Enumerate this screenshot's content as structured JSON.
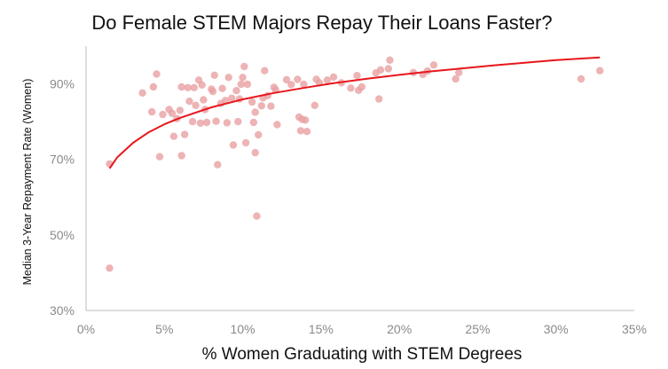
{
  "chart_data": {
    "type": "scatter",
    "title": "Do Female STEM Majors Repay Their Loans Faster?",
    "xlabel": "% Women Graduating with STEM Degrees",
    "ylabel": "Median 3-Year Repayment Rate (Women)",
    "xlim": [
      0,
      35
    ],
    "ylim": [
      30,
      100
    ],
    "x_ticks": [
      "0%",
      "5%",
      "10%",
      "15%",
      "20%",
      "25%",
      "30%",
      "35%"
    ],
    "x_tick_values": [
      0,
      5,
      10,
      15,
      20,
      25,
      30,
      35
    ],
    "y_ticks": [
      "30%",
      "50%",
      "70%",
      "90%"
    ],
    "y_tick_values": [
      30,
      50,
      70,
      90
    ],
    "grid": false,
    "point_color": "#e8a0a3",
    "trend_color": "#e8161c",
    "trend": {
      "type": "logarithmic",
      "x_range": [
        1.5,
        32.8
      ],
      "points": [
        [
          1.5,
          67.6
        ],
        [
          2.0,
          70.6
        ],
        [
          3.0,
          74.4
        ],
        [
          4.0,
          77.2
        ],
        [
          5.0,
          79.3
        ],
        [
          6.0,
          81.0
        ],
        [
          8.0,
          83.8
        ],
        [
          10.0,
          85.9
        ],
        [
          12.0,
          87.6
        ],
        [
          14.0,
          89.0
        ],
        [
          16.0,
          90.3
        ],
        [
          18.0,
          91.4
        ],
        [
          20.0,
          92.4
        ],
        [
          22.0,
          93.3
        ],
        [
          24.0,
          94.1
        ],
        [
          26.0,
          94.9
        ],
        [
          28.0,
          95.6
        ],
        [
          30.0,
          96.3
        ],
        [
          32.8,
          97.0
        ]
      ]
    },
    "points": [
      [
        1.5,
        68.8
      ],
      [
        1.5,
        41.2
      ],
      [
        3.6,
        87.6
      ],
      [
        4.2,
        82.6
      ],
      [
        4.3,
        89.2
      ],
      [
        4.5,
        92.6
      ],
      [
        4.7,
        70.7
      ],
      [
        4.9,
        81.9
      ],
      [
        5.3,
        83.2
      ],
      [
        5.5,
        82.2
      ],
      [
        5.6,
        76.1
      ],
      [
        5.8,
        80.8
      ],
      [
        6.0,
        83.0
      ],
      [
        6.1,
        89.2
      ],
      [
        6.1,
        71.0
      ],
      [
        6.3,
        76.6
      ],
      [
        6.5,
        89.0
      ],
      [
        6.6,
        85.4
      ],
      [
        6.8,
        80.0
      ],
      [
        6.9,
        89.0
      ],
      [
        7.0,
        84.3
      ],
      [
        7.2,
        91.0
      ],
      [
        7.3,
        79.6
      ],
      [
        7.4,
        89.7
      ],
      [
        7.5,
        85.8
      ],
      [
        7.6,
        83.2
      ],
      [
        7.7,
        79.8
      ],
      [
        8.0,
        88.6
      ],
      [
        8.1,
        88.0
      ],
      [
        8.2,
        92.3
      ],
      [
        8.3,
        80.1
      ],
      [
        8.4,
        68.6
      ],
      [
        8.6,
        84.8
      ],
      [
        8.7,
        88.8
      ],
      [
        8.9,
        85.6
      ],
      [
        9.0,
        79.7
      ],
      [
        9.1,
        91.7
      ],
      [
        9.3,
        86.2
      ],
      [
        9.4,
        73.8
      ],
      [
        9.6,
        88.2
      ],
      [
        9.7,
        80.0
      ],
      [
        9.8,
        86.0
      ],
      [
        9.9,
        89.9
      ],
      [
        10.0,
        91.7
      ],
      [
        10.1,
        94.6
      ],
      [
        10.2,
        74.4
      ],
      [
        10.3,
        89.9
      ],
      [
        10.6,
        85.2
      ],
      [
        10.7,
        79.8
      ],
      [
        10.8,
        82.5
      ],
      [
        10.8,
        71.8
      ],
      [
        10.9,
        55.0
      ],
      [
        11.0,
        76.5
      ],
      [
        11.2,
        84.2
      ],
      [
        11.3,
        86.3
      ],
      [
        11.4,
        93.5
      ],
      [
        11.6,
        86.9
      ],
      [
        11.8,
        84.1
      ],
      [
        12.0,
        89.1
      ],
      [
        12.1,
        88.4
      ],
      [
        12.2,
        79.2
      ],
      [
        12.8,
        91.1
      ],
      [
        13.1,
        89.8
      ],
      [
        13.5,
        91.2
      ],
      [
        13.6,
        81.2
      ],
      [
        13.7,
        77.6
      ],
      [
        13.8,
        80.6
      ],
      [
        13.9,
        89.9
      ],
      [
        14.0,
        80.4
      ],
      [
        14.1,
        77.4
      ],
      [
        14.6,
        84.3
      ],
      [
        14.7,
        91.2
      ],
      [
        14.9,
        90.3
      ],
      [
        15.4,
        91.0
      ],
      [
        15.8,
        91.8
      ],
      [
        16.3,
        90.3
      ],
      [
        16.9,
        88.9
      ],
      [
        17.3,
        92.2
      ],
      [
        17.4,
        88.3
      ],
      [
        17.6,
        89.2
      ],
      [
        18.5,
        92.9
      ],
      [
        18.7,
        86.0
      ],
      [
        18.8,
        93.7
      ],
      [
        19.3,
        94.0
      ],
      [
        19.4,
        96.3
      ],
      [
        20.9,
        93.0
      ],
      [
        21.5,
        92.5
      ],
      [
        21.8,
        93.4
      ],
      [
        22.2,
        95.0
      ],
      [
        23.6,
        91.3
      ],
      [
        23.8,
        93.0
      ],
      [
        31.6,
        91.3
      ],
      [
        32.8,
        93.5
      ]
    ]
  }
}
